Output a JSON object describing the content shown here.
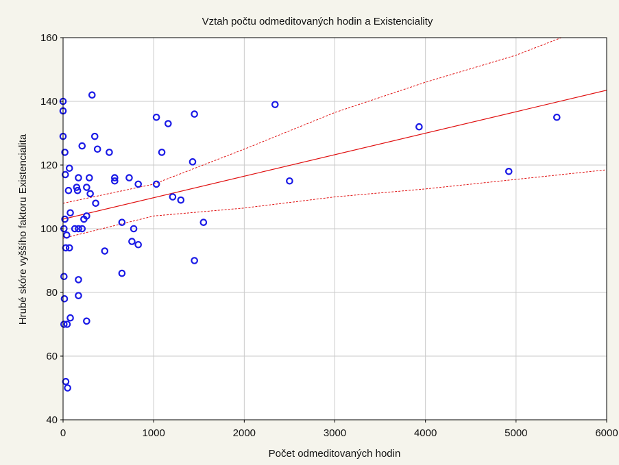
{
  "chart_data": {
    "type": "scatter",
    "title": "Vztah počtu odmeditovaných hodin a Existenciality",
    "xlabel": "Počet odmeditovaných hodin",
    "ylabel": "Hrubé skóre vyššího faktoru Existencialita",
    "xlim": [
      0,
      6000
    ],
    "ylim": [
      40,
      160
    ],
    "xticks": [
      0,
      1000,
      2000,
      3000,
      4000,
      5000,
      6000
    ],
    "yticks": [
      40,
      60,
      80,
      100,
      120,
      140,
      160
    ],
    "grid": true,
    "points": [
      {
        "x": 0,
        "y": 140
      },
      {
        "x": 0,
        "y": 137
      },
      {
        "x": 0,
        "y": 129
      },
      {
        "x": 20,
        "y": 124
      },
      {
        "x": 25,
        "y": 117
      },
      {
        "x": 70,
        "y": 119
      },
      {
        "x": 60,
        "y": 112
      },
      {
        "x": 80,
        "y": 105
      },
      {
        "x": 20,
        "y": 103
      },
      {
        "x": 10,
        "y": 100
      },
      {
        "x": 40,
        "y": 98
      },
      {
        "x": 30,
        "y": 94
      },
      {
        "x": 70,
        "y": 94
      },
      {
        "x": 10,
        "y": 85
      },
      {
        "x": 15,
        "y": 78
      },
      {
        "x": 80,
        "y": 72
      },
      {
        "x": 10,
        "y": 70
      },
      {
        "x": 45,
        "y": 70
      },
      {
        "x": 30,
        "y": 52
      },
      {
        "x": 50,
        "y": 50
      },
      {
        "x": 320,
        "y": 142
      },
      {
        "x": 350,
        "y": 129
      },
      {
        "x": 210,
        "y": 126
      },
      {
        "x": 380,
        "y": 125
      },
      {
        "x": 510,
        "y": 124
      },
      {
        "x": 170,
        "y": 116
      },
      {
        "x": 290,
        "y": 116
      },
      {
        "x": 150,
        "y": 113
      },
      {
        "x": 260,
        "y": 113
      },
      {
        "x": 160,
        "y": 112
      },
      {
        "x": 300,
        "y": 111
      },
      {
        "x": 360,
        "y": 108
      },
      {
        "x": 260,
        "y": 104
      },
      {
        "x": 230,
        "y": 103
      },
      {
        "x": 130,
        "y": 100
      },
      {
        "x": 170,
        "y": 100
      },
      {
        "x": 210,
        "y": 100
      },
      {
        "x": 170,
        "y": 84
      },
      {
        "x": 170,
        "y": 79
      },
      {
        "x": 260,
        "y": 71
      },
      {
        "x": 570,
        "y": 116
      },
      {
        "x": 570,
        "y": 115
      },
      {
        "x": 730,
        "y": 116
      },
      {
        "x": 830,
        "y": 114
      },
      {
        "x": 650,
        "y": 102
      },
      {
        "x": 780,
        "y": 100
      },
      {
        "x": 760,
        "y": 96
      },
      {
        "x": 830,
        "y": 95
      },
      {
        "x": 460,
        "y": 93
      },
      {
        "x": 650,
        "y": 86
      },
      {
        "x": 1030,
        "y": 135
      },
      {
        "x": 1160,
        "y": 133
      },
      {
        "x": 1090,
        "y": 124
      },
      {
        "x": 1030,
        "y": 114
      },
      {
        "x": 1210,
        "y": 110
      },
      {
        "x": 1300,
        "y": 109
      },
      {
        "x": 1450,
        "y": 136
      },
      {
        "x": 1430,
        "y": 121
      },
      {
        "x": 1550,
        "y": 102
      },
      {
        "x": 1450,
        "y": 90
      },
      {
        "x": 2340,
        "y": 139
      },
      {
        "x": 2500,
        "y": 115
      },
      {
        "x": 3930,
        "y": 132
      },
      {
        "x": 4920,
        "y": 118
      },
      {
        "x": 5450,
        "y": 135
      }
    ],
    "fit_line": {
      "x": [
        0,
        6000
      ],
      "y": [
        103,
        143.5
      ]
    },
    "ci_upper": {
      "x": [
        0,
        1000,
        2000,
        3000,
        4000,
        5000,
        5500
      ],
      "y": [
        108,
        114,
        125,
        136.5,
        146,
        154.5,
        160
      ]
    },
    "ci_lower": {
      "x": [
        0,
        1000,
        2000,
        3000,
        4000,
        5000,
        6000
      ],
      "y": [
        97,
        104,
        106.5,
        110,
        112.5,
        115.5,
        118.5
      ]
    },
    "colors": {
      "points": "#1a1ae6",
      "fit": "#e01010",
      "grid": "#c9c9c9",
      "plot_bg": "#ffffff",
      "frame_bg": "#f5f4ec"
    }
  }
}
